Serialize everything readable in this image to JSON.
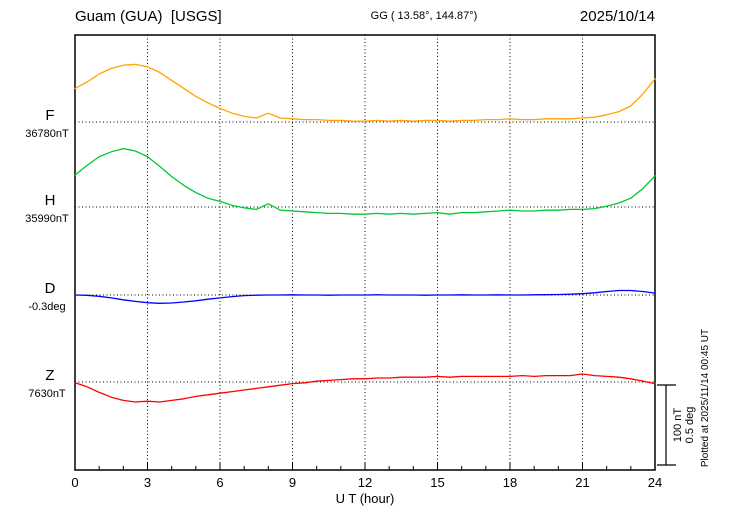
{
  "header": {
    "station_title": "Guam (GUA)  [USGS]",
    "coords": "GG ( 13.58°, 144.87°)",
    "date": "2025/10/14"
  },
  "axis": {
    "xlabel": "U T (hour)"
  },
  "scalebar": {
    "label_nt": "100 nT",
    "label_deg": "0.5 deg"
  },
  "footer": {
    "plotted_note": "Plotted at 2025/11/14 00:45 UT"
  },
  "chart_data": {
    "type": "line",
    "title": "Guam (GUA) [USGS] magnetogram 2025/10/14",
    "xlabel": "U T (hour)",
    "x_range": [
      0,
      24
    ],
    "x_ticks": [
      0,
      3,
      6,
      9,
      12,
      15,
      18,
      21,
      24
    ],
    "grid": "dotted vertical lines every 3 h; dotted horizontal baseline per trace",
    "legend_position": "left labels",
    "scale_bar": {
      "nT": 100,
      "deg": 0.5
    },
    "x": [
      0,
      0.5,
      1,
      1.5,
      2,
      2.5,
      3,
      3.5,
      4,
      4.5,
      5,
      5.5,
      6,
      6.5,
      7,
      7.5,
      8,
      8.5,
      9,
      9.5,
      10,
      10.5,
      11,
      11.5,
      12,
      12.5,
      13,
      13.5,
      14,
      14.5,
      15,
      15.5,
      16,
      16.5,
      17,
      17.5,
      18,
      18.5,
      19,
      19.5,
      20,
      20.5,
      21,
      21.5,
      22,
      22.5,
      23,
      23.5,
      24
    ],
    "series": [
      {
        "name": "F",
        "label": "F",
        "unit": "nT",
        "baseline": 36780,
        "baseline_label": "36780nT",
        "color": "#ffa500",
        "values": [
          36822,
          36830,
          36840,
          36847,
          36851,
          36852,
          36849,
          36842,
          36832,
          36822,
          36812,
          36804,
          36797,
          36791,
          36787,
          36785,
          36791,
          36785,
          36784,
          36783,
          36783,
          36782,
          36782,
          36781,
          36781,
          36782,
          36781,
          36782,
          36781,
          36782,
          36782,
          36781,
          36782,
          36782,
          36783,
          36783,
          36784,
          36783,
          36783,
          36784,
          36784,
          36784,
          36785,
          36786,
          36789,
          36793,
          36800,
          36815,
          36834
        ]
      },
      {
        "name": "H",
        "label": "H",
        "unit": "nT",
        "baseline": 35990,
        "baseline_label": "35990nT",
        "color": "#00c832",
        "values": [
          36030,
          36042,
          36053,
          36059,
          36063,
          36060,
          36053,
          36041,
          36028,
          36017,
          36008,
          36001,
          35997,
          35992,
          35989,
          35987,
          35994,
          35986,
          35985,
          35984,
          35983,
          35982,
          35982,
          35981,
          35981,
          35982,
          35981,
          35982,
          35981,
          35982,
          35983,
          35981,
          35983,
          35983,
          35984,
          35985,
          35986,
          35985,
          35985,
          35986,
          35986,
          35987,
          35987,
          35988,
          35991,
          35995,
          36001,
          36013,
          36029
        ]
      },
      {
        "name": "D",
        "label": "D",
        "unit": "deg",
        "baseline": -0.3,
        "baseline_label": "-0.3deg",
        "color": "#0000ff",
        "values": [
          -0.3,
          -0.302,
          -0.308,
          -0.318,
          -0.33,
          -0.34,
          -0.348,
          -0.352,
          -0.35,
          -0.344,
          -0.336,
          -0.326,
          -0.318,
          -0.31,
          -0.304,
          -0.301,
          -0.3,
          -0.3,
          -0.299,
          -0.3,
          -0.3,
          -0.301,
          -0.3,
          -0.3,
          -0.3,
          -0.299,
          -0.3,
          -0.3,
          -0.3,
          -0.301,
          -0.3,
          -0.3,
          -0.299,
          -0.3,
          -0.3,
          -0.299,
          -0.3,
          -0.3,
          -0.299,
          -0.298,
          -0.297,
          -0.295,
          -0.292,
          -0.286,
          -0.278,
          -0.272,
          -0.272,
          -0.278,
          -0.288
        ]
      },
      {
        "name": "Z",
        "label": "Z",
        "unit": "nT",
        "baseline": 7630,
        "baseline_label": "7630nT",
        "color": "#ff0000",
        "values": [
          7629,
          7624,
          7617,
          7611,
          7607,
          7605,
          7606,
          7605,
          7607,
          7609,
          7612,
          7614,
          7616,
          7618,
          7620,
          7622,
          7624,
          7626,
          7628,
          7629,
          7631,
          7632,
          7633,
          7634,
          7634,
          7635,
          7635,
          7636,
          7636,
          7636,
          7637,
          7636,
          7637,
          7637,
          7637,
          7637,
          7637,
          7638,
          7637,
          7638,
          7638,
          7638,
          7640,
          7638,
          7637,
          7636,
          7634,
          7631,
          7628
        ]
      }
    ]
  }
}
